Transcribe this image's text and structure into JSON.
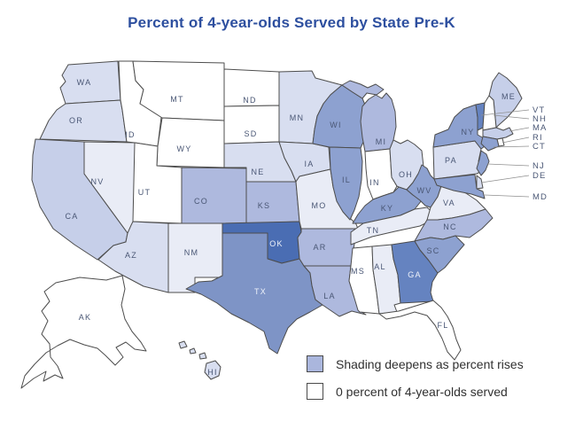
{
  "title": {
    "text": "Percent of 4-year-olds Served by State Pre-K",
    "color": "#2d4f9f"
  },
  "legend": {
    "items": [
      {
        "swatch_fill": "#aab6dd",
        "label": "Shading deepens as percent rises"
      },
      {
        "swatch_fill": "#ffffff",
        "label": "0 percent of 4-year-olds served"
      }
    ]
  },
  "map": {
    "border_color": "#4d4d4d",
    "label_color": "#4a5775",
    "zero_percent_fill": "#ffffff",
    "shade_ramp": [
      "#ffffff",
      "#e9ecf6",
      "#d8def0",
      "#c6cfe9",
      "#aeb9de",
      "#8da1d0",
      "#7e94c6",
      "#6583c0",
      "#4a6db3"
    ],
    "states": [
      {
        "id": "WA",
        "label": "WA",
        "fill": "#d8def0"
      },
      {
        "id": "OR",
        "label": "OR",
        "fill": "#d8def0"
      },
      {
        "id": "CA",
        "label": "CA",
        "fill": "#c6cfe9"
      },
      {
        "id": "NV",
        "label": "NV",
        "fill": "#e9ecf6"
      },
      {
        "id": "ID",
        "label": "ID",
        "fill": "#ffffff"
      },
      {
        "id": "MT",
        "label": "MT",
        "fill": "#ffffff"
      },
      {
        "id": "WY",
        "label": "WY",
        "fill": "#ffffff"
      },
      {
        "id": "UT",
        "label": "UT",
        "fill": "#ffffff"
      },
      {
        "id": "CO",
        "label": "CO",
        "fill": "#aeb9de"
      },
      {
        "id": "AZ",
        "label": "AZ",
        "fill": "#d8def0"
      },
      {
        "id": "NM",
        "label": "NM",
        "fill": "#e9ecf6"
      },
      {
        "id": "ND",
        "label": "ND",
        "fill": "#ffffff"
      },
      {
        "id": "SD",
        "label": "SD",
        "fill": "#ffffff"
      },
      {
        "id": "NE",
        "label": "NE",
        "fill": "#d8def0"
      },
      {
        "id": "KS",
        "label": "KS",
        "fill": "#aeb9de"
      },
      {
        "id": "OK",
        "label": "OK",
        "fill": "#4a6db3",
        "label_color": "#eef2fa"
      },
      {
        "id": "TX",
        "label": "TX",
        "fill": "#7e94c6",
        "label_color": "#eef2fa"
      },
      {
        "id": "MN",
        "label": "MN",
        "fill": "#d8def0"
      },
      {
        "id": "IA",
        "label": "IA",
        "fill": "#d8def0"
      },
      {
        "id": "MO",
        "label": "MO",
        "fill": "#e9ecf6"
      },
      {
        "id": "AR",
        "label": "AR",
        "fill": "#aeb9de"
      },
      {
        "id": "LA",
        "label": "LA",
        "fill": "#aeb9de"
      },
      {
        "id": "WI",
        "label": "WI",
        "fill": "#8da1d0"
      },
      {
        "id": "IL",
        "label": "IL",
        "fill": "#8da1d0"
      },
      {
        "id": "MI",
        "label": "MI",
        "fill": "#aeb9de"
      },
      {
        "id": "IN",
        "label": "IN",
        "fill": "#ffffff"
      },
      {
        "id": "OH",
        "label": "OH",
        "fill": "#d8def0"
      },
      {
        "id": "KY",
        "label": "KY",
        "fill": "#8da1d0"
      },
      {
        "id": "TN",
        "label": "TN",
        "fill": "#e9ecf6"
      },
      {
        "id": "MS",
        "label": "MS",
        "fill": "#ffffff"
      },
      {
        "id": "AL",
        "label": "AL",
        "fill": "#e9ecf6"
      },
      {
        "id": "GA",
        "label": "GA",
        "fill": "#6583c0",
        "label_color": "#eef2fa"
      },
      {
        "id": "FL",
        "label": "FL",
        "fill": "#ffffff"
      },
      {
        "id": "WV",
        "label": "WV",
        "fill": "#8da1d0"
      },
      {
        "id": "VA",
        "label": "VA",
        "fill": "#e9ecf6"
      },
      {
        "id": "NC",
        "label": "NC",
        "fill": "#aeb9de"
      },
      {
        "id": "SC",
        "label": "SC",
        "fill": "#8da1d0"
      },
      {
        "id": "PA",
        "label": "PA",
        "fill": "#d8def0"
      },
      {
        "id": "NY",
        "label": "NY",
        "fill": "#8da1d0"
      },
      {
        "id": "ME",
        "label": "ME",
        "fill": "#c6cfe9"
      },
      {
        "id": "VT",
        "label": "",
        "fill": "#6583c0"
      },
      {
        "id": "NH",
        "label": "",
        "fill": "#ffffff"
      },
      {
        "id": "MA",
        "label": "",
        "fill": "#c6cfe9"
      },
      {
        "id": "RI",
        "label": "",
        "fill": "#ffffff"
      },
      {
        "id": "CT",
        "label": "",
        "fill": "#8da1d0"
      },
      {
        "id": "NJ",
        "label": "",
        "fill": "#8da1d0"
      },
      {
        "id": "DE",
        "label": "",
        "fill": "#d8def0"
      },
      {
        "id": "MD",
        "label": "",
        "fill": "#8da1d0"
      },
      {
        "id": "AK",
        "label": "AK",
        "fill": "#ffffff"
      },
      {
        "id": "HI",
        "label": "HI",
        "fill": "#d8def0"
      }
    ],
    "callouts": [
      {
        "id": "VT",
        "label": "VT"
      },
      {
        "id": "NH",
        "label": "NH"
      },
      {
        "id": "MA",
        "label": "MA"
      },
      {
        "id": "RI",
        "label": "RI"
      },
      {
        "id": "CT",
        "label": "CT"
      },
      {
        "id": "NJ",
        "label": "NJ"
      },
      {
        "id": "DE",
        "label": "DE"
      },
      {
        "id": "MD",
        "label": "MD"
      }
    ]
  }
}
